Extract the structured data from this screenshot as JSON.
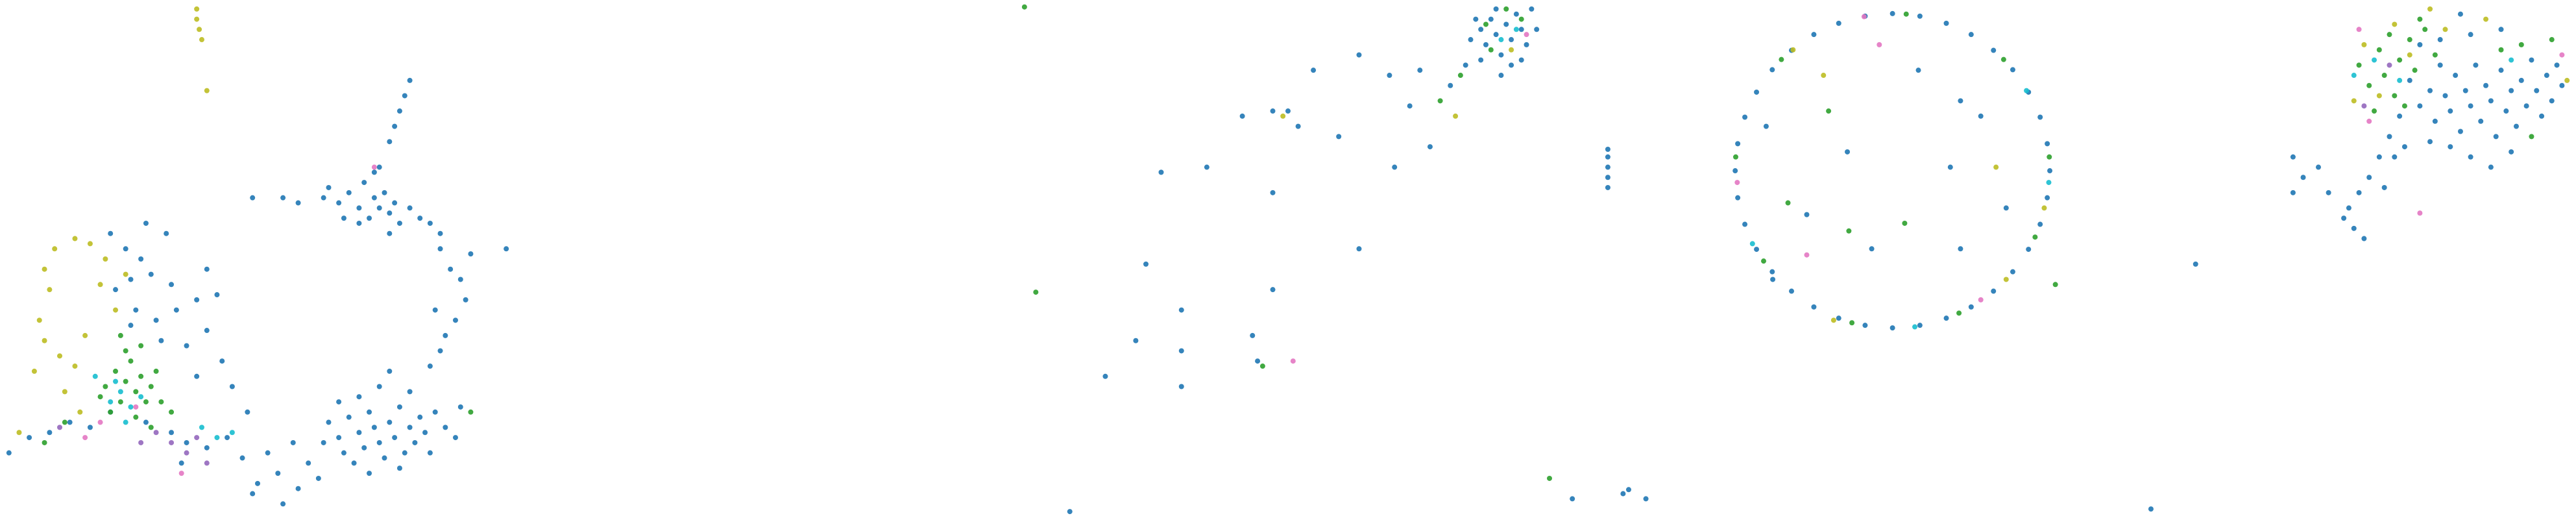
{
  "chart_data": [
    {
      "type": "scatter",
      "xlim": [
        0,
        100
      ],
      "ylim": [
        0,
        100
      ],
      "series": [
        {
          "color": "#1f77b4",
          "x": [
            64,
            66,
            68,
            70,
            71,
            72,
            73,
            74,
            75,
            76,
            77,
            78,
            70,
            67,
            80,
            82,
            84,
            73,
            63,
            76,
            86,
            74,
            77,
            78,
            79,
            80,
            76,
            86,
            88,
            90,
            91,
            89,
            87,
            86,
            84,
            92,
            85,
            99,
            64,
            66,
            67,
            68,
            70,
            71,
            72,
            73,
            74,
            75,
            76,
            77,
            78,
            79,
            80,
            81,
            82,
            83,
            85,
            87,
            89,
            74,
            76,
            70,
            72,
            78,
            69,
            84,
            90,
            80,
            66,
            63,
            21,
            24,
            27,
            25,
            29,
            33,
            22,
            26,
            30,
            34,
            38,
            40,
            36,
            31,
            42,
            40,
            28,
            32,
            25,
            43,
            38,
            1,
            5,
            9,
            13,
            17,
            21,
            28,
            33,
            36,
            40,
            44,
            47,
            50,
            54,
            52,
            57,
            60,
            49,
            58,
            62,
            55,
            35,
            48,
            45,
            49,
            55,
            58
          ],
          "y": [
            64,
            61,
            63,
            60,
            65,
            58,
            62,
            60,
            63,
            59,
            61,
            57,
            57,
            58,
            60,
            58,
            57,
            67,
            62,
            55,
            55,
            68,
            76,
            79,
            82,
            85,
            73,
            52,
            48,
            46,
            42,
            38,
            35,
            32,
            29,
            51,
            40,
            52,
            18,
            15,
            12,
            19,
            16,
            13,
            20,
            17,
            14,
            11,
            18,
            15,
            21,
            12,
            17,
            14,
            19,
            16,
            20,
            17,
            15,
            25,
            28,
            23,
            8,
            9,
            10,
            12,
            21,
            24,
            22,
            14,
            55,
            52,
            50,
            46,
            47,
            45,
            44,
            40,
            38,
            40,
            42,
            36,
            33,
            34,
            43,
            48,
            57,
            55,
            37,
            30,
            27,
            12,
            15,
            16,
            18,
            17,
            20,
            18,
            16,
            14,
            13,
            15,
            11,
            6,
            8,
            12,
            14,
            10,
            4,
            5,
            7,
            2,
            10,
            20,
            25,
            62,
            62,
            61
          ]
        },
        {
          "color": "#2ca02c",
          "x": [
            20,
            22,
            23,
            24,
            25,
            26,
            27,
            28,
            29,
            24,
            21,
            26,
            30,
            23,
            27,
            19,
            31,
            12,
            8,
            33,
            29,
            92
          ],
          "y": [
            25,
            28,
            22,
            26,
            30,
            24,
            27,
            22,
            25,
            32,
            20,
            19,
            28,
            35,
            33,
            23,
            22,
            18,
            14,
            20,
            17,
            20
          ]
        },
        {
          "color": "#bcbd22",
          "x": [
            38,
            38,
            38.5,
            39,
            40,
            8,
            10,
            14,
            17,
            20,
            9,
            7,
            8,
            11,
            14,
            6,
            12,
            16,
            19,
            22,
            3,
            15,
            24
          ],
          "y": [
            99,
            97,
            95,
            93,
            83,
            48,
            52,
            54,
            53,
            50,
            44,
            38,
            34,
            31,
            29,
            28,
            24,
            35,
            45,
            40,
            16,
            20,
            47
          ]
        },
        {
          "color": "#17becf",
          "x": [
            21,
            23,
            25,
            27,
            22,
            24,
            42,
            45,
            18,
            39
          ],
          "y": [
            22,
            24,
            21,
            23,
            26,
            18,
            15,
            16,
            27,
            17
          ]
        },
        {
          "color": "#9467bd",
          "x": [
            30,
            33,
            36,
            38,
            11,
            27,
            40
          ],
          "y": [
            16,
            14,
            12,
            15,
            17,
            14,
            10
          ]
        },
        {
          "color": "#e377c2",
          "x": [
            16,
            19,
            73,
            35,
            26
          ],
          "y": [
            15,
            18,
            68,
            8,
            21
          ]
        }
      ]
    },
    {
      "type": "scatter",
      "xlim": [
        0,
        100
      ],
      "ylim": [
        0,
        100
      ],
      "series": [
        {
          "color": "#2ca02c",
          "x": [
            99.6
          ],
          "y": [
            99.4
          ]
        }
      ]
    },
    {
      "type": "scatter",
      "xlim": [
        0,
        100
      ],
      "ylim": [
        0,
        100
      ],
      "series": [
        {
          "color": "#1f77b4",
          "x": [
            86,
            88,
            89,
            90,
            91,
            92,
            93,
            94,
            95,
            96,
            97,
            98,
            91,
            94,
            88,
            87,
            96,
            99,
            92,
            85,
            41,
            47,
            52,
            55,
            64,
            70,
            76,
            25,
            34,
            47,
            71,
            78,
            64,
            22,
            29,
            20,
            29,
            43,
            47,
            44,
            14,
            29,
            50,
            60,
            82,
            74,
            7
          ],
          "y": [
            93,
            95,
            92,
            97,
            94,
            90,
            96,
            93,
            98,
            95,
            92,
            99,
            99,
            88,
            89,
            97,
            89,
            95,
            86,
            88,
            78,
            79,
            76,
            87,
            90,
            86,
            87,
            67,
            68,
            63,
            68,
            72,
            52,
            49,
            40,
            34,
            32,
            35,
            44,
            30,
            27,
            25,
            79,
            74,
            84,
            80,
            0.5
          ]
        },
        {
          "color": "#2ca02c",
          "x": [
            90,
            93,
            96,
            89,
            0.3,
            45,
            80,
            84
          ],
          "y": [
            91,
            99,
            97,
            96,
            43.5,
            29,
            81,
            86
          ]
        },
        {
          "color": "#bcbd22",
          "x": [
            49,
            83,
            94
          ],
          "y": [
            78,
            78,
            91
          ]
        },
        {
          "color": "#e377c2",
          "x": [
            51,
            97
          ],
          "y": [
            30,
            94
          ]
        },
        {
          "color": "#17becf",
          "x": [
            92,
            95
          ],
          "y": [
            93,
            95
          ]
        }
      ]
    },
    {
      "type": "scatter",
      "xlim": [
        0,
        100
      ],
      "ylim": [
        0,
        100
      ],
      "series": [
        {
          "color": "#1f77b4",
          "x": [
            98.6,
            98.1,
            96.7,
            94.4,
            91.3,
            87.5,
            83.1,
            78.2,
            73.0,
            67.6,
            62.2,
            57.0,
            52.1,
            47.7,
            43.9,
            40.8,
            38.5,
            37.1,
            36.6,
            37.1,
            38.5,
            40.8,
            43.9,
            47.7,
            52.1,
            57.0,
            62.2,
            67.6,
            73.0,
            78.2,
            83.1,
            87.5,
            91.3,
            94.4,
            96.7,
            98.1,
            11.5,
            11.5,
            11.5,
            11.5,
            11.5,
            4.5,
            15.6,
            19,
            14.5,
            42.7,
            50.7,
            58.7,
            72.7,
            79,
            85,
            63.5,
            44,
            90,
            81,
            81
          ],
          "y": [
            67.3,
            72.6,
            77.8,
            82.7,
            87.1,
            90.9,
            94.0,
            96.2,
            97.6,
            98.1,
            97.6,
            96.2,
            94.0,
            90.9,
            87.1,
            82.7,
            77.8,
            72.6,
            67.3,
            62.0,
            56.8,
            51.9,
            47.5,
            43.7,
            40.6,
            38.4,
            37.0,
            36.5,
            37.0,
            38.4,
            40.6,
            43.7,
            47.5,
            51.9,
            56.8,
            62.0,
            70,
            68,
            66,
            64,
            71.5,
            3,
            4.8,
            3,
            4,
            76,
            58.7,
            71,
            87,
            68,
            78,
            52,
            46,
            60,
            52,
            81
          ]
        },
        {
          "color": "#2ca02c",
          "x": [
            98.5,
            89.5,
            70.3,
            45.7,
            36.7,
            42.2,
            59.6,
            80.7,
            95.7,
            59,
            0,
            99.7,
            47,
            55,
            70
          ],
          "y": [
            70.0,
            89.1,
            98.0,
            89.1,
            70.0,
            49.6,
            37.5,
            39.4,
            54.3,
            55.5,
            7,
            45,
            61,
            79,
            57
          ]
        },
        {
          "color": "#bcbd22",
          "x": [
            97.5,
            48,
            56,
            90,
            54,
            88
          ],
          "y": [
            60,
            91,
            38,
            46,
            86,
            68
          ]
        },
        {
          "color": "#e377c2",
          "x": [
            62,
            37,
            85,
            65,
            50.7
          ],
          "y": [
            97.5,
            65,
            42,
            92,
            50.8
          ]
        },
        {
          "color": "#17becf",
          "x": [
            98.4,
            40,
            72,
            94
          ],
          "y": [
            65,
            53,
            36.7,
            83
          ]
        }
      ]
    },
    {
      "type": "scatter",
      "xlim": [
        0,
        100
      ],
      "ylim": [
        0,
        100
      ],
      "series": [
        {
          "color": "#1f77b4",
          "x": [
            68,
            70,
            72,
            73,
            74,
            75,
            76,
            77,
            78,
            79,
            80,
            81,
            82,
            83,
            84,
            85,
            86,
            87,
            88,
            89,
            90,
            91,
            92,
            93,
            94,
            95,
            96,
            97,
            98,
            76,
            80,
            84,
            72,
            88,
            74,
            80,
            86,
            78,
            70,
            66,
            64,
            62,
            60,
            58,
            56,
            55,
            57,
            59,
            50,
            47,
            45,
            45,
            52,
            25.8,
            17,
            67,
            63,
            65
          ],
          "y": [
            85,
            80,
            83,
            77,
            88,
            82,
            79,
            86,
            75,
            83,
            80,
            88,
            77,
            84,
            81,
            74,
            87,
            79,
            83,
            76,
            85,
            80,
            89,
            83,
            78,
            86,
            81,
            88,
            84,
            72,
            70,
            68,
            73,
            71,
            93,
            94,
            95,
            98,
            92,
            78,
            74,
            70,
            66,
            63,
            60,
            58,
            56,
            54,
            68,
            66,
            70,
            63,
            63,
            49,
            1,
            72,
            64,
            70
          ]
        },
        {
          "color": "#2ca02c",
          "x": [
            58,
            60,
            62,
            63,
            65,
            66,
            68,
            69,
            71,
            64,
            61,
            67,
            70,
            73,
            90,
            96,
            92,
            86
          ],
          "y": [
            88,
            84,
            91,
            86,
            82,
            89,
            93,
            87,
            95,
            94,
            79,
            80,
            97,
            90,
            92,
            93,
            74,
            91
          ]
        },
        {
          "color": "#bcbd22",
          "x": [
            59,
            62,
            65,
            68,
            72,
            75,
            83,
            99,
            57
          ],
          "y": [
            92,
            82,
            96,
            90,
            99,
            95,
            97,
            85,
            81
          ]
        },
        {
          "color": "#e377c2",
          "x": [
            58,
            70,
            98,
            60
          ],
          "y": [
            95,
            59,
            90,
            77
          ]
        },
        {
          "color": "#17becf",
          "x": [
            61,
            66,
            88,
            57
          ],
          "y": [
            89,
            85,
            89,
            86
          ]
        },
        {
          "color": "#9467bd",
          "x": [
            59,
            64
          ],
          "y": [
            80,
            88
          ]
        }
      ]
    }
  ]
}
